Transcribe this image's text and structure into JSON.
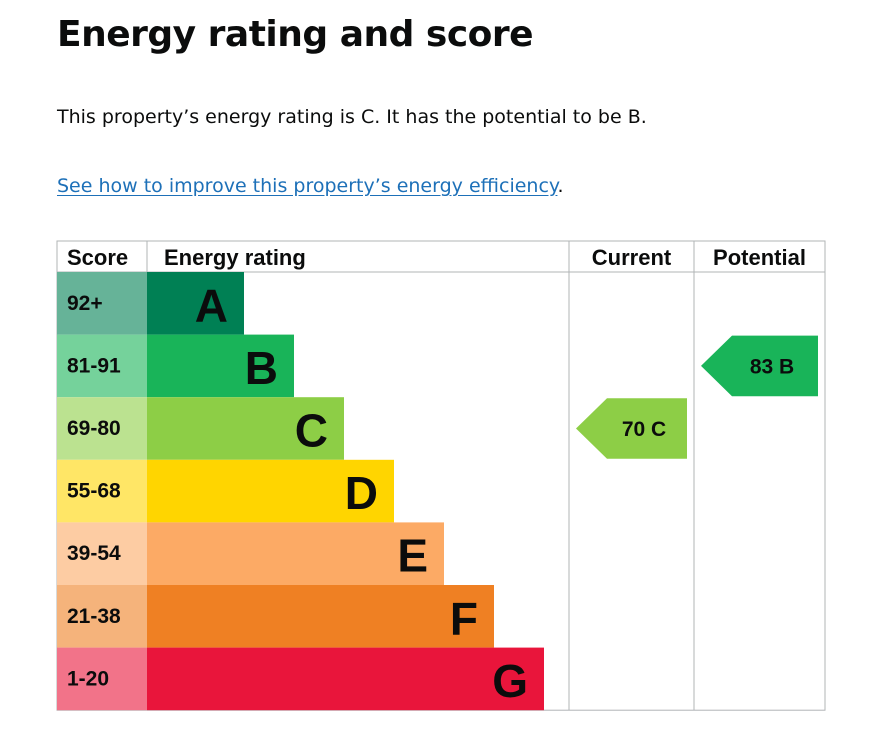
{
  "page": {
    "title": "Energy rating and score",
    "summary": "This property’s energy rating is C. It has the potential to be B.",
    "improve_link": "See how to improve this property’s energy efficiency",
    "improve_suffix": "."
  },
  "chart_data": {
    "type": "bar",
    "columns": [
      "Score",
      "Energy rating",
      "Current",
      "Potential"
    ],
    "bands": [
      {
        "letter": "A",
        "range": "92+",
        "color": "#008054",
        "score_color": "#66b398"
      },
      {
        "letter": "B",
        "range": "81-91",
        "color": "#19b459",
        "score_color": "#75d29b"
      },
      {
        "letter": "C",
        "range": "69-80",
        "color": "#8dce46",
        "score_color": "#bbe290"
      },
      {
        "letter": "D",
        "range": "55-68",
        "color": "#ffd500",
        "score_color": "#ffe666"
      },
      {
        "letter": "E",
        "range": "39-54",
        "color": "#fcaa65",
        "score_color": "#fdcca3"
      },
      {
        "letter": "F",
        "range": "21-38",
        "color": "#ef8023",
        "score_color": "#f5b37b"
      },
      {
        "letter": "G",
        "range": "1-20",
        "color": "#e9153b",
        "score_color": "#f27389"
      }
    ],
    "current": {
      "score": 70,
      "letter": "C",
      "label": "70 C",
      "color": "#8dce46"
    },
    "potential": {
      "score": 83,
      "letter": "B",
      "label": "83 B",
      "color": "#19b459"
    }
  }
}
